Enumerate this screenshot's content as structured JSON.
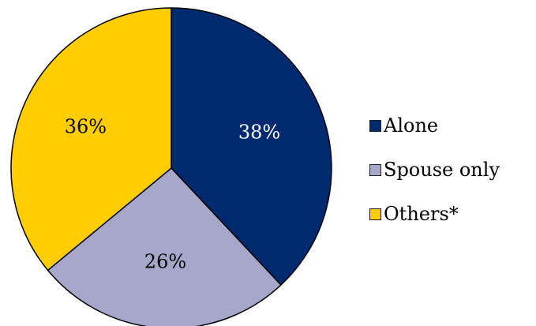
{
  "chart_data": {
    "type": "pie",
    "categories": [
      "Alone",
      "Spouse only",
      "Others*"
    ],
    "values": [
      38,
      26,
      36
    ],
    "labels": [
      "38%",
      "26%",
      "36%"
    ],
    "colors": [
      "#002a70",
      "#a7a7cb",
      "#ffcd00"
    ],
    "label_colors": [
      "#ffffff",
      "#000000",
      "#000000"
    ],
    "start_angle": "12 o'clock",
    "direction": "clockwise",
    "legend_position": "right"
  }
}
